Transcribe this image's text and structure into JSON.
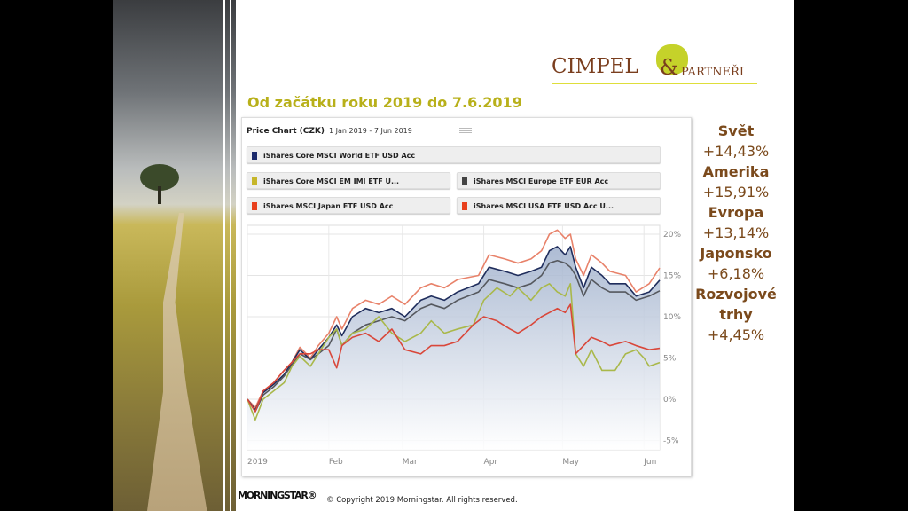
{
  "title": "Od začátku roku 2019 do 7.6.2019",
  "logo": {
    "name": "CIMPEL",
    "amp": "&",
    "partner": "PARTNEŘI"
  },
  "chart_header": {
    "title": "Price Chart (CZK)",
    "range": "1 Jan 2019 - 7 Jun 2019",
    "menu_icon": "hamburger-icon"
  },
  "stats": [
    {
      "label": "Svět",
      "value": "+14,43%"
    },
    {
      "label": "Amerika",
      "value": "+15,91%"
    },
    {
      "label": "Evropa",
      "value": "+13,14%"
    },
    {
      "label": "Japonsko",
      "value": "+6,18%"
    },
    {
      "label": "Rozvojové trhy",
      "value": "+4,45%"
    }
  ],
  "footer": {
    "logo": "MORNINGSTAR®",
    "copyright": "© Copyright 2019 Morningstar. All rights reserved."
  },
  "chart_data": {
    "type": "line",
    "title": "Price Chart (CZK)",
    "subtitle": "1 Jan 2019 - 7 Jun 2019",
    "x_unit": "days since 1 Jan 2019",
    "xlim": [
      0,
      157
    ],
    "ylim": [
      -6,
      21
    ],
    "yticks": [
      {
        "v": 20,
        "label": "20%"
      },
      {
        "v": 15,
        "label": "15%"
      },
      {
        "v": 10,
        "label": "10%"
      },
      {
        "v": 5,
        "label": "5%"
      },
      {
        "v": 0,
        "label": "0%"
      },
      {
        "v": -5,
        "label": "-5%"
      }
    ],
    "xticks": [
      {
        "d": 0,
        "label": "2019"
      },
      {
        "d": 31,
        "label": "Feb"
      },
      {
        "d": 59,
        "label": "Mar"
      },
      {
        "d": 90,
        "label": "Apr"
      },
      {
        "d": 120,
        "label": "May"
      },
      {
        "d": 151,
        "label": "Jun"
      }
    ],
    "grid": true,
    "legend_position": "top",
    "series": [
      {
        "name": "iShares Core MSCI World ETF USD Acc",
        "color": "#1f2d5c",
        "area": true,
        "points": [
          [
            0,
            0
          ],
          [
            3,
            -1.3
          ],
          [
            6,
            0.8
          ],
          [
            10,
            1.8
          ],
          [
            14,
            3
          ],
          [
            17,
            4.5
          ],
          [
            20,
            6
          ],
          [
            24,
            4.8
          ],
          [
            27,
            6
          ],
          [
            31,
            7.5
          ],
          [
            34,
            9
          ],
          [
            36,
            7.7
          ],
          [
            40,
            10
          ],
          [
            45,
            11
          ],
          [
            50,
            10.5
          ],
          [
            55,
            11
          ],
          [
            60,
            10
          ],
          [
            66,
            12
          ],
          [
            70,
            12.5
          ],
          [
            75,
            12
          ],
          [
            80,
            13
          ],
          [
            88,
            14
          ],
          [
            92,
            16
          ],
          [
            98,
            15.5
          ],
          [
            103,
            15
          ],
          [
            108,
            15.5
          ],
          [
            112,
            16
          ],
          [
            115,
            18
          ],
          [
            118,
            18.5
          ],
          [
            121,
            17.5
          ],
          [
            123,
            18.5
          ],
          [
            125,
            16
          ],
          [
            128,
            13.5
          ],
          [
            131,
            16
          ],
          [
            135,
            15
          ],
          [
            138,
            14
          ],
          [
            144,
            14
          ],
          [
            148,
            12.5
          ],
          [
            153,
            13
          ],
          [
            157,
            14.43
          ]
        ]
      },
      {
        "name": "iShares Core MSCI EM IMI ETF U...",
        "color": "#a9b84a",
        "points": [
          [
            0,
            0
          ],
          [
            3,
            -2.5
          ],
          [
            6,
            0
          ],
          [
            10,
            1
          ],
          [
            14,
            2
          ],
          [
            17,
            4
          ],
          [
            20,
            5.2
          ],
          [
            24,
            4
          ],
          [
            27,
            5.5
          ],
          [
            31,
            7.5
          ],
          [
            34,
            8.5
          ],
          [
            36,
            6.5
          ],
          [
            40,
            8
          ],
          [
            45,
            8.5
          ],
          [
            50,
            10
          ],
          [
            55,
            8
          ],
          [
            60,
            7
          ],
          [
            66,
            8
          ],
          [
            70,
            9.5
          ],
          [
            75,
            8
          ],
          [
            80,
            8.5
          ],
          [
            86,
            9
          ],
          [
            90,
            12
          ],
          [
            95,
            13.5
          ],
          [
            100,
            12.5
          ],
          [
            103,
            13.5
          ],
          [
            108,
            12
          ],
          [
            112,
            13.5
          ],
          [
            115,
            14
          ],
          [
            118,
            13
          ],
          [
            121,
            12.5
          ],
          [
            123,
            14
          ],
          [
            125,
            5.5
          ],
          [
            128,
            4
          ],
          [
            131,
            6
          ],
          [
            135,
            3.5
          ],
          [
            140,
            3.5
          ],
          [
            144,
            5.5
          ],
          [
            148,
            6
          ],
          [
            151,
            5
          ],
          [
            153,
            4
          ],
          [
            157,
            4.45
          ]
        ]
      },
      {
        "name": "iShares MSCI Europe ETF EUR Acc",
        "color": "#55585e",
        "points": [
          [
            0,
            0
          ],
          [
            3,
            -1.5
          ],
          [
            6,
            0.5
          ],
          [
            10,
            1.5
          ],
          [
            14,
            2.8
          ],
          [
            17,
            4.2
          ],
          [
            20,
            5.5
          ],
          [
            24,
            4.8
          ],
          [
            27,
            5.5
          ],
          [
            31,
            6.5
          ],
          [
            34,
            8.5
          ],
          [
            36,
            6.5
          ],
          [
            40,
            8
          ],
          [
            45,
            9
          ],
          [
            50,
            9.5
          ],
          [
            55,
            10
          ],
          [
            60,
            9.5
          ],
          [
            66,
            11
          ],
          [
            70,
            11.5
          ],
          [
            75,
            11
          ],
          [
            80,
            12
          ],
          [
            88,
            13
          ],
          [
            92,
            14.5
          ],
          [
            98,
            14
          ],
          [
            103,
            13.5
          ],
          [
            108,
            14
          ],
          [
            112,
            15
          ],
          [
            115,
            16.5
          ],
          [
            118,
            16.8
          ],
          [
            121,
            16.5
          ],
          [
            123,
            16
          ],
          [
            125,
            15
          ],
          [
            128,
            12.5
          ],
          [
            131,
            14.5
          ],
          [
            135,
            13.5
          ],
          [
            138,
            13
          ],
          [
            144,
            13
          ],
          [
            148,
            12
          ],
          [
            153,
            12.5
          ],
          [
            157,
            13.14
          ]
        ]
      },
      {
        "name": "iShares MSCI Japan ETF USD Acc",
        "color": "#d9473a",
        "points": [
          [
            0,
            0
          ],
          [
            3,
            -1.5
          ],
          [
            6,
            1
          ],
          [
            10,
            2
          ],
          [
            14,
            3.5
          ],
          [
            17,
            4.5
          ],
          [
            20,
            5.5
          ],
          [
            24,
            5.5
          ],
          [
            27,
            6
          ],
          [
            31,
            6
          ],
          [
            34,
            3.8
          ],
          [
            36,
            6.5
          ],
          [
            40,
            7.5
          ],
          [
            45,
            8
          ],
          [
            50,
            7
          ],
          [
            55,
            8.5
          ],
          [
            60,
            6
          ],
          [
            66,
            5.5
          ],
          [
            70,
            6.5
          ],
          [
            75,
            6.5
          ],
          [
            80,
            7
          ],
          [
            86,
            9
          ],
          [
            90,
            10
          ],
          [
            95,
            9.5
          ],
          [
            100,
            8.5
          ],
          [
            103,
            8
          ],
          [
            108,
            9
          ],
          [
            112,
            10
          ],
          [
            115,
            10.5
          ],
          [
            118,
            11
          ],
          [
            121,
            10.5
          ],
          [
            123,
            11.5
          ],
          [
            125,
            5.5
          ],
          [
            128,
            6.5
          ],
          [
            131,
            7.5
          ],
          [
            135,
            7
          ],
          [
            138,
            6.5
          ],
          [
            144,
            7
          ],
          [
            148,
            6.5
          ],
          [
            153,
            6
          ],
          [
            157,
            6.18
          ]
        ]
      },
      {
        "name": "iShares MSCI USA ETF USD Acc U...",
        "color": "#e8826a",
        "points": [
          [
            0,
            0
          ],
          [
            3,
            -1
          ],
          [
            6,
            1
          ],
          [
            10,
            2
          ],
          [
            14,
            3.5
          ],
          [
            17,
            4.5
          ],
          [
            20,
            6.3
          ],
          [
            24,
            5
          ],
          [
            27,
            6.5
          ],
          [
            31,
            8
          ],
          [
            34,
            10
          ],
          [
            36,
            8.5
          ],
          [
            40,
            11
          ],
          [
            45,
            12
          ],
          [
            50,
            11.5
          ],
          [
            55,
            12.5
          ],
          [
            60,
            11.5
          ],
          [
            66,
            13.5
          ],
          [
            70,
            14
          ],
          [
            75,
            13.5
          ],
          [
            80,
            14.5
          ],
          [
            88,
            15
          ],
          [
            92,
            17.5
          ],
          [
            98,
            17
          ],
          [
            103,
            16.5
          ],
          [
            108,
            17
          ],
          [
            112,
            18
          ],
          [
            115,
            20
          ],
          [
            118,
            20.5
          ],
          [
            121,
            19.5
          ],
          [
            123,
            20
          ],
          [
            125,
            17
          ],
          [
            128,
            15
          ],
          [
            131,
            17.5
          ],
          [
            135,
            16.5
          ],
          [
            138,
            15.5
          ],
          [
            144,
            15
          ],
          [
            148,
            13
          ],
          [
            153,
            14
          ],
          [
            157,
            15.91
          ]
        ]
      }
    ]
  },
  "legend_swatches": [
    "#1b2a6b",
    "#c6b62a",
    "#444",
    "#e8401c",
    "#e8401c"
  ]
}
